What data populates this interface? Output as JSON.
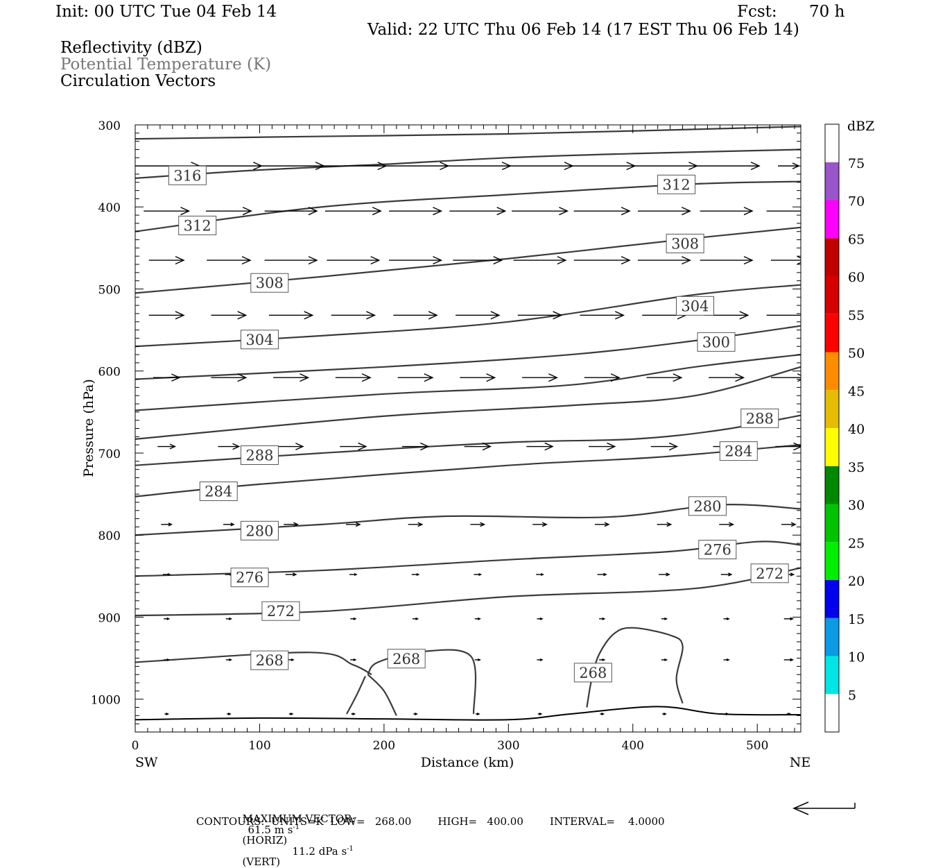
{
  "header": {
    "init": "Init: 00 UTC Tue 04 Feb 14",
    "fcst_label": "Fcst:",
    "fcst_value": "70 h",
    "valid": "Valid: 22 UTC Thu 06 Feb 14 (17 EST Thu 06 Feb 14)"
  },
  "legend": {
    "reflectivity": "Reflectivity (dBZ)",
    "theta": "Potential Temperature (K)",
    "vectors": "Circulation Vectors"
  },
  "colorbar": {
    "title": "dBZ",
    "levels": [
      {
        "label": "",
        "color": "#ffffff"
      },
      {
        "label": "5",
        "color": "#00e5e5"
      },
      {
        "label": "10",
        "color": "#0a9ae6"
      },
      {
        "label": "15",
        "color": "#0000ee"
      },
      {
        "label": "20",
        "color": "#00ee00"
      },
      {
        "label": "25",
        "color": "#00c400"
      },
      {
        "label": "30",
        "color": "#008800"
      },
      {
        "label": "35",
        "color": "#ffff00"
      },
      {
        "label": "40",
        "color": "#e6bd00"
      },
      {
        "label": "45",
        "color": "#ff8c00"
      },
      {
        "label": "50",
        "color": "#ff0000"
      },
      {
        "label": "55",
        "color": "#d70000"
      },
      {
        "label": "60",
        "color": "#c00000"
      },
      {
        "label": "65",
        "color": "#ff00ff"
      },
      {
        "label": "70",
        "color": "#9955c9"
      },
      {
        "label": "75",
        "color": "#ffffff"
      }
    ]
  },
  "footer": {
    "max_vector_label": "MAXIMUM VECTOR:",
    "horiz": "61.5 m s",
    "horiz_unit": "(HORIZ)",
    "vert": "11.2 dPa s",
    "vert_unit": "(VERT)",
    "exp": "-1",
    "contours": "CONTOURS:  UNITS=K  LOW=   268.00        HIGH=   400.00        INTERVAL=    4.0000"
  },
  "chart_data": {
    "type": "line",
    "xlabel": "Distance (km)",
    "ylabel": "Pressure (hPa)",
    "xlim": [
      0,
      535
    ],
    "ylim": [
      1040,
      300
    ],
    "x_ticks": [
      0,
      100,
      200,
      300,
      400,
      500
    ],
    "y_ticks": [
      300,
      400,
      500,
      600,
      700,
      800,
      900,
      1000
    ],
    "x_end_labels": {
      "left": "SW",
      "right": "NE"
    },
    "terrain": [
      [
        0,
        1025
      ],
      [
        100,
        1023
      ],
      [
        200,
        1024
      ],
      [
        300,
        1025
      ],
      [
        350,
        1018
      ],
      [
        420,
        1009
      ],
      [
        470,
        1018
      ],
      [
        535,
        1019
      ]
    ],
    "isentropes": [
      {
        "pts": [
          [
            0,
            317
          ],
          [
            150,
            314
          ],
          [
            300,
            311
          ],
          [
            535,
            302
          ]
        ]
      },
      {
        "pts": [
          [
            0,
            365
          ],
          [
            100,
            355
          ],
          [
            200,
            348
          ],
          [
            300,
            340
          ],
          [
            400,
            335
          ],
          [
            535,
            330
          ]
        ]
      },
      {
        "pts": [
          [
            0,
            430
          ],
          [
            150,
            400
          ],
          [
            300,
            385
          ],
          [
            450,
            372
          ],
          [
            535,
            369
          ]
        ]
      },
      {
        "pts": [
          [
            0,
            505
          ],
          [
            150,
            485
          ],
          [
            300,
            463
          ],
          [
            450,
            438
          ],
          [
            535,
            425
          ]
        ]
      },
      {
        "pts": [
          [
            0,
            570
          ],
          [
            150,
            557
          ],
          [
            300,
            540
          ],
          [
            450,
            507
          ],
          [
            535,
            495
          ]
        ]
      },
      {
        "pts": [
          [
            0,
            610
          ],
          [
            200,
            595
          ],
          [
            350,
            580
          ],
          [
            450,
            563
          ],
          [
            535,
            545
          ]
        ]
      },
      {
        "pts": [
          [
            0,
            648
          ],
          [
            200,
            628
          ],
          [
            350,
            617
          ],
          [
            450,
            595
          ],
          [
            535,
            580
          ]
        ]
      },
      {
        "pts": [
          [
            0,
            683
          ],
          [
            200,
            655
          ],
          [
            350,
            642
          ],
          [
            450,
            630
          ],
          [
            535,
            595
          ]
        ]
      },
      {
        "pts": [
          [
            0,
            715
          ],
          [
            150,
            700
          ],
          [
            300,
            687
          ],
          [
            400,
            683
          ],
          [
            470,
            672
          ],
          [
            535,
            654
          ]
        ]
      },
      {
        "pts": [
          [
            0,
            753
          ],
          [
            100,
            738
          ],
          [
            300,
            715
          ],
          [
            420,
            705
          ],
          [
            535,
            690
          ]
        ]
      },
      {
        "pts": [
          [
            0,
            800
          ],
          [
            150,
            787
          ],
          [
            250,
            777
          ],
          [
            380,
            778
          ],
          [
            470,
            763
          ],
          [
            535,
            768
          ]
        ]
      },
      {
        "pts": [
          [
            0,
            850
          ],
          [
            150,
            843
          ],
          [
            300,
            830
          ],
          [
            430,
            820
          ],
          [
            500,
            808
          ],
          [
            535,
            812
          ]
        ]
      },
      {
        "pts": [
          [
            0,
            898
          ],
          [
            150,
            893
          ],
          [
            300,
            875
          ],
          [
            450,
            865
          ],
          [
            535,
            840
          ]
        ]
      },
      {
        "pts": [
          [
            0,
            955
          ],
          [
            140,
            943
          ],
          [
            175,
            958
          ],
          [
            190,
            970
          ]
        ]
      },
      {
        "pts": [
          [
            170,
            1018
          ],
          [
            178,
            995
          ],
          [
            185,
            972
          ]
        ]
      },
      {
        "pts": [
          [
            187,
            970
          ],
          [
            200,
            990
          ],
          [
            210,
            1020
          ]
        ]
      },
      {
        "pts": [
          [
            187,
            970
          ],
          [
            195,
            955
          ],
          [
            230,
            942
          ],
          [
            270,
            948
          ],
          [
            272,
            1018
          ]
        ]
      },
      {
        "pts": [
          [
            363,
            1010
          ],
          [
            367,
            975
          ],
          [
            373,
            945
          ],
          [
            385,
            920
          ],
          [
            400,
            913
          ],
          [
            430,
            922
          ],
          [
            440,
            935
          ],
          [
            435,
            975
          ],
          [
            440,
            1005
          ]
        ]
      }
    ],
    "isentrope_labels": [
      {
        "x": 42,
        "p": 362,
        "label": "316"
      },
      {
        "x": 50,
        "p": 423,
        "label": "312"
      },
      {
        "x": 435,
        "p": 373,
        "label": "312"
      },
      {
        "x": 108,
        "p": 493,
        "label": "308"
      },
      {
        "x": 442,
        "p": 445,
        "label": "308"
      },
      {
        "x": 100,
        "p": 562,
        "label": "304"
      },
      {
        "x": 450,
        "p": 521,
        "label": "304"
      },
      {
        "x": 467,
        "p": 565,
        "label": "300"
      },
      {
        "x": 502,
        "p": 658,
        "label": "288"
      },
      {
        "x": 100,
        "p": 703,
        "label": "288"
      },
      {
        "x": 485,
        "p": 698,
        "label": "284"
      },
      {
        "x": 67,
        "p": 747,
        "label": "284"
      },
      {
        "x": 460,
        "p": 765,
        "label": "280"
      },
      {
        "x": 100,
        "p": 795,
        "label": "280"
      },
      {
        "x": 468,
        "p": 818,
        "label": "276"
      },
      {
        "x": 92,
        "p": 852,
        "label": "276"
      },
      {
        "x": 510,
        "p": 847,
        "label": "272"
      },
      {
        "x": 117,
        "p": 893,
        "label": "272"
      },
      {
        "x": 108,
        "p": 953,
        "label": "268"
      },
      {
        "x": 218,
        "p": 951,
        "label": "268"
      },
      {
        "x": 368,
        "p": 968,
        "label": "268"
      }
    ],
    "vectors": [
      {
        "p": 350,
        "pts": [
          [
            25,
            38
          ],
          [
            75,
            38
          ],
          [
            125,
            38
          ],
          [
            175,
            38
          ],
          [
            225,
            38
          ],
          [
            275,
            38
          ],
          [
            325,
            38
          ],
          [
            375,
            38
          ],
          [
            425,
            38
          ],
          [
            475,
            38
          ],
          [
            525,
            12
          ]
        ]
      },
      {
        "p": 405,
        "pts": [
          [
            25,
            26
          ],
          [
            75,
            26
          ],
          [
            125,
            30
          ],
          [
            175,
            32
          ],
          [
            225,
            30
          ],
          [
            275,
            32
          ],
          [
            325,
            32
          ],
          [
            375,
            32
          ],
          [
            425,
            30
          ],
          [
            475,
            30
          ],
          [
            525,
            25
          ]
        ]
      },
      {
        "p": 465,
        "pts": [
          [
            25,
            20
          ],
          [
            75,
            25
          ],
          [
            125,
            30
          ],
          [
            175,
            30
          ],
          [
            225,
            30
          ],
          [
            275,
            28
          ],
          [
            325,
            30
          ],
          [
            375,
            32
          ],
          [
            425,
            30
          ],
          [
            475,
            30
          ],
          [
            525,
            20
          ]
        ]
      },
      {
        "p": 532,
        "pts": [
          [
            25,
            20
          ],
          [
            75,
            20
          ],
          [
            125,
            25
          ],
          [
            175,
            25
          ],
          [
            225,
            25
          ],
          [
            275,
            25
          ],
          [
            325,
            25
          ],
          [
            375,
            25
          ],
          [
            425,
            25
          ],
          [
            475,
            25
          ],
          [
            525,
            25
          ]
        ]
      },
      {
        "p": 608,
        "pts": [
          [
            25,
            15
          ],
          [
            75,
            20
          ],
          [
            125,
            20
          ],
          [
            175,
            20
          ],
          [
            225,
            20
          ],
          [
            275,
            20
          ],
          [
            325,
            20
          ],
          [
            375,
            20
          ],
          [
            425,
            20
          ],
          [
            475,
            20
          ],
          [
            525,
            20
          ]
        ]
      },
      {
        "p": 692,
        "pts": [
          [
            25,
            10
          ],
          [
            75,
            12
          ],
          [
            125,
            14
          ],
          [
            175,
            15
          ],
          [
            225,
            15
          ],
          [
            275,
            15
          ],
          [
            325,
            15
          ],
          [
            375,
            15
          ],
          [
            425,
            15
          ],
          [
            475,
            15
          ],
          [
            525,
            15
          ]
        ]
      },
      {
        "p": 787,
        "pts": [
          [
            25,
            6
          ],
          [
            75,
            6
          ],
          [
            125,
            8
          ],
          [
            175,
            8
          ],
          [
            225,
            8
          ],
          [
            275,
            8
          ],
          [
            325,
            8
          ],
          [
            375,
            8
          ],
          [
            425,
            8
          ],
          [
            475,
            8
          ],
          [
            525,
            8
          ]
        ]
      },
      {
        "p": 848,
        "pts": [
          [
            25,
            4
          ],
          [
            75,
            4
          ],
          [
            125,
            6
          ],
          [
            175,
            4
          ],
          [
            225,
            4
          ],
          [
            275,
            4
          ],
          [
            325,
            4
          ],
          [
            375,
            5
          ],
          [
            425,
            6
          ],
          [
            475,
            6
          ],
          [
            525,
            6
          ]
        ]
      },
      {
        "p": 902,
        "pts": [
          [
            25,
            3
          ],
          [
            75,
            3
          ],
          [
            125,
            3
          ],
          [
            175,
            3
          ],
          [
            225,
            3
          ],
          [
            275,
            3
          ],
          [
            325,
            3
          ],
          [
            375,
            3
          ],
          [
            425,
            3
          ],
          [
            475,
            3
          ],
          [
            525,
            5
          ]
        ]
      },
      {
        "p": 952,
        "pts": [
          [
            25,
            3
          ],
          [
            75,
            3
          ],
          [
            125,
            3
          ],
          [
            175,
            3
          ],
          [
            225,
            3
          ],
          [
            275,
            3
          ],
          [
            325,
            3
          ],
          [
            375,
            3
          ],
          [
            425,
            3
          ],
          [
            475,
            3
          ],
          [
            525,
            5
          ]
        ]
      },
      {
        "p": 1018,
        "pts": [
          [
            25,
            2
          ],
          [
            75,
            2
          ],
          [
            125,
            2
          ],
          [
            175,
            2
          ],
          [
            225,
            2
          ],
          [
            275,
            2
          ],
          [
            325,
            2
          ],
          [
            375,
            2
          ],
          [
            425,
            2
          ],
          [
            475,
            2
          ],
          [
            525,
            2
          ]
        ]
      }
    ]
  }
}
